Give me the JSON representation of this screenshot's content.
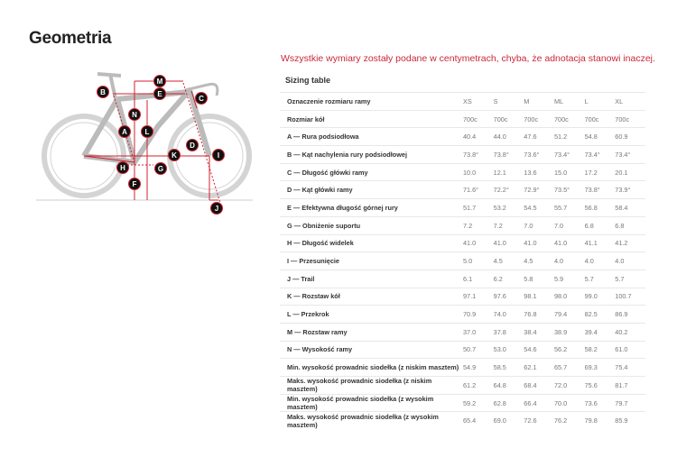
{
  "page": {
    "title": "Geometria",
    "note": "Wszystkie wymiary zostały podane w centymetrach, chyba, że adnotacja stanowi inaczej.",
    "table_title": "Sizing table"
  },
  "diagram": {
    "labels": [
      "A",
      "B",
      "C",
      "D",
      "E",
      "F",
      "G",
      "H",
      "I",
      "J",
      "K",
      "L",
      "M",
      "N"
    ],
    "accent": "#d0202e"
  },
  "table": {
    "header": {
      "label": "Oznaczenie rozmiaru ramy",
      "values": [
        "XS",
        "S",
        "M",
        "ML",
        "L",
        "XL"
      ]
    },
    "rows": [
      {
        "label": "Rozmiar kół",
        "values": [
          "700c",
          "700c",
          "700c",
          "700c",
          "700c",
          "700c"
        ]
      },
      {
        "label": "A — Rura podsiodłowa",
        "values": [
          "40.4",
          "44.0",
          "47.6",
          "51.2",
          "54.8",
          "60.9"
        ]
      },
      {
        "label": "B — Kąt nachylenia rury podsiodłowej",
        "values": [
          "73.8°",
          "73.8°",
          "73.6°",
          "73.4°",
          "73.4°",
          "73.4°"
        ]
      },
      {
        "label": "C — Długość główki ramy",
        "values": [
          "10.0",
          "12.1",
          "13.6",
          "15.0",
          "17.2",
          "20.1"
        ]
      },
      {
        "label": "D — Kąt główki ramy",
        "values": [
          "71.6°",
          "72.2°",
          "72.9°",
          "73.5°",
          "73.8°",
          "73.9°"
        ]
      },
      {
        "label": "E — Efektywna długość górnej rury",
        "values": [
          "51.7",
          "53.2",
          "54.5",
          "55.7",
          "56.8",
          "58.4"
        ]
      },
      {
        "label": "G — Obniżenie suportu",
        "values": [
          "7.2",
          "7.2",
          "7.0",
          "7.0",
          "6.8",
          "6.8"
        ]
      },
      {
        "label": "H — Długość widelek",
        "values": [
          "41.0",
          "41.0",
          "41.0",
          "41.0",
          "41.1",
          "41.2"
        ]
      },
      {
        "label": "I — Przesunięcie",
        "values": [
          "5.0",
          "4.5",
          "4.5",
          "4.0",
          "4.0",
          "4.0"
        ]
      },
      {
        "label": "J — Trail",
        "values": [
          "6.1",
          "6.2",
          "5.8",
          "5.9",
          "5.7",
          "5.7"
        ]
      },
      {
        "label": "K — Rozstaw kół",
        "values": [
          "97.1",
          "97.6",
          "98.1",
          "98.0",
          "99.0",
          "100.7"
        ]
      },
      {
        "label": "L — Przekrok",
        "values": [
          "70.9",
          "74.0",
          "76.8",
          "79.4",
          "82.5",
          "86.9"
        ]
      },
      {
        "label": "M — Rozstaw ramy",
        "values": [
          "37.0",
          "37.8",
          "38.4",
          "38.9",
          "39.4",
          "40.2"
        ]
      },
      {
        "label": "N — Wysokość ramy",
        "values": [
          "50.7",
          "53.0",
          "54.6",
          "56.2",
          "58.2",
          "61.0"
        ]
      },
      {
        "label": "Min. wysokość prowadnic siodełka (z niskim masztem)",
        "values": [
          "54.9",
          "58.5",
          "62.1",
          "65.7",
          "69.3",
          "75.4"
        ]
      },
      {
        "label": "Maks. wysokość prowadnic siodełka (z niskim masztem)",
        "values": [
          "61.2",
          "64.8",
          "68.4",
          "72.0",
          "75.6",
          "81.7"
        ]
      },
      {
        "label": "Min. wysokość prowadnic siodełka (z wysokim masztem)",
        "values": [
          "59.2",
          "62.8",
          "66.4",
          "70.0",
          "73.6",
          "79.7"
        ]
      },
      {
        "label": "Maks. wysokość prowadnic siodełka (z wysokim masztem)",
        "values": [
          "65.4",
          "69.0",
          "72.6",
          "76.2",
          "79.8",
          "85.9"
        ]
      }
    ]
  }
}
